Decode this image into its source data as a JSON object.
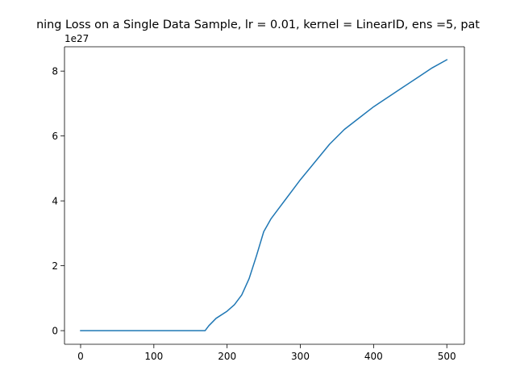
{
  "chart_data": {
    "type": "line",
    "title": "ning Loss on a Single Data Sample, lr = 0.01, kernel = LinearID, ens =5, pat",
    "xlabel": "",
    "ylabel": "",
    "y_offset_label": "1e27",
    "xlim": [
      -22,
      524
    ],
    "ylim": [
      -0.42,
      8.75
    ],
    "x_ticks": [
      0,
      100,
      200,
      300,
      400,
      500
    ],
    "x_tick_labels": [
      "0",
      "100",
      "200",
      "300",
      "400",
      "500"
    ],
    "y_ticks": [
      0,
      2,
      4,
      6,
      8
    ],
    "y_tick_labels": [
      "0",
      "2",
      "4",
      "6",
      "8"
    ],
    "grid": false,
    "series": [
      {
        "color": "#1f77b4",
        "x": [
          0,
          50,
          100,
          150,
          170,
          175,
          185,
          200,
          210,
          220,
          230,
          240,
          250,
          255,
          260,
          270,
          280,
          290,
          300,
          320,
          340,
          360,
          380,
          400,
          420,
          440,
          460,
          480,
          500
        ],
        "y": [
          0,
          0,
          0,
          0,
          0,
          0.15,
          0.38,
          0.6,
          0.8,
          1.1,
          1.6,
          2.3,
          3.05,
          3.25,
          3.45,
          3.75,
          4.05,
          4.35,
          4.65,
          5.2,
          5.75,
          6.2,
          6.55,
          6.9,
          7.2,
          7.5,
          7.8,
          8.1,
          8.35
        ]
      }
    ]
  }
}
